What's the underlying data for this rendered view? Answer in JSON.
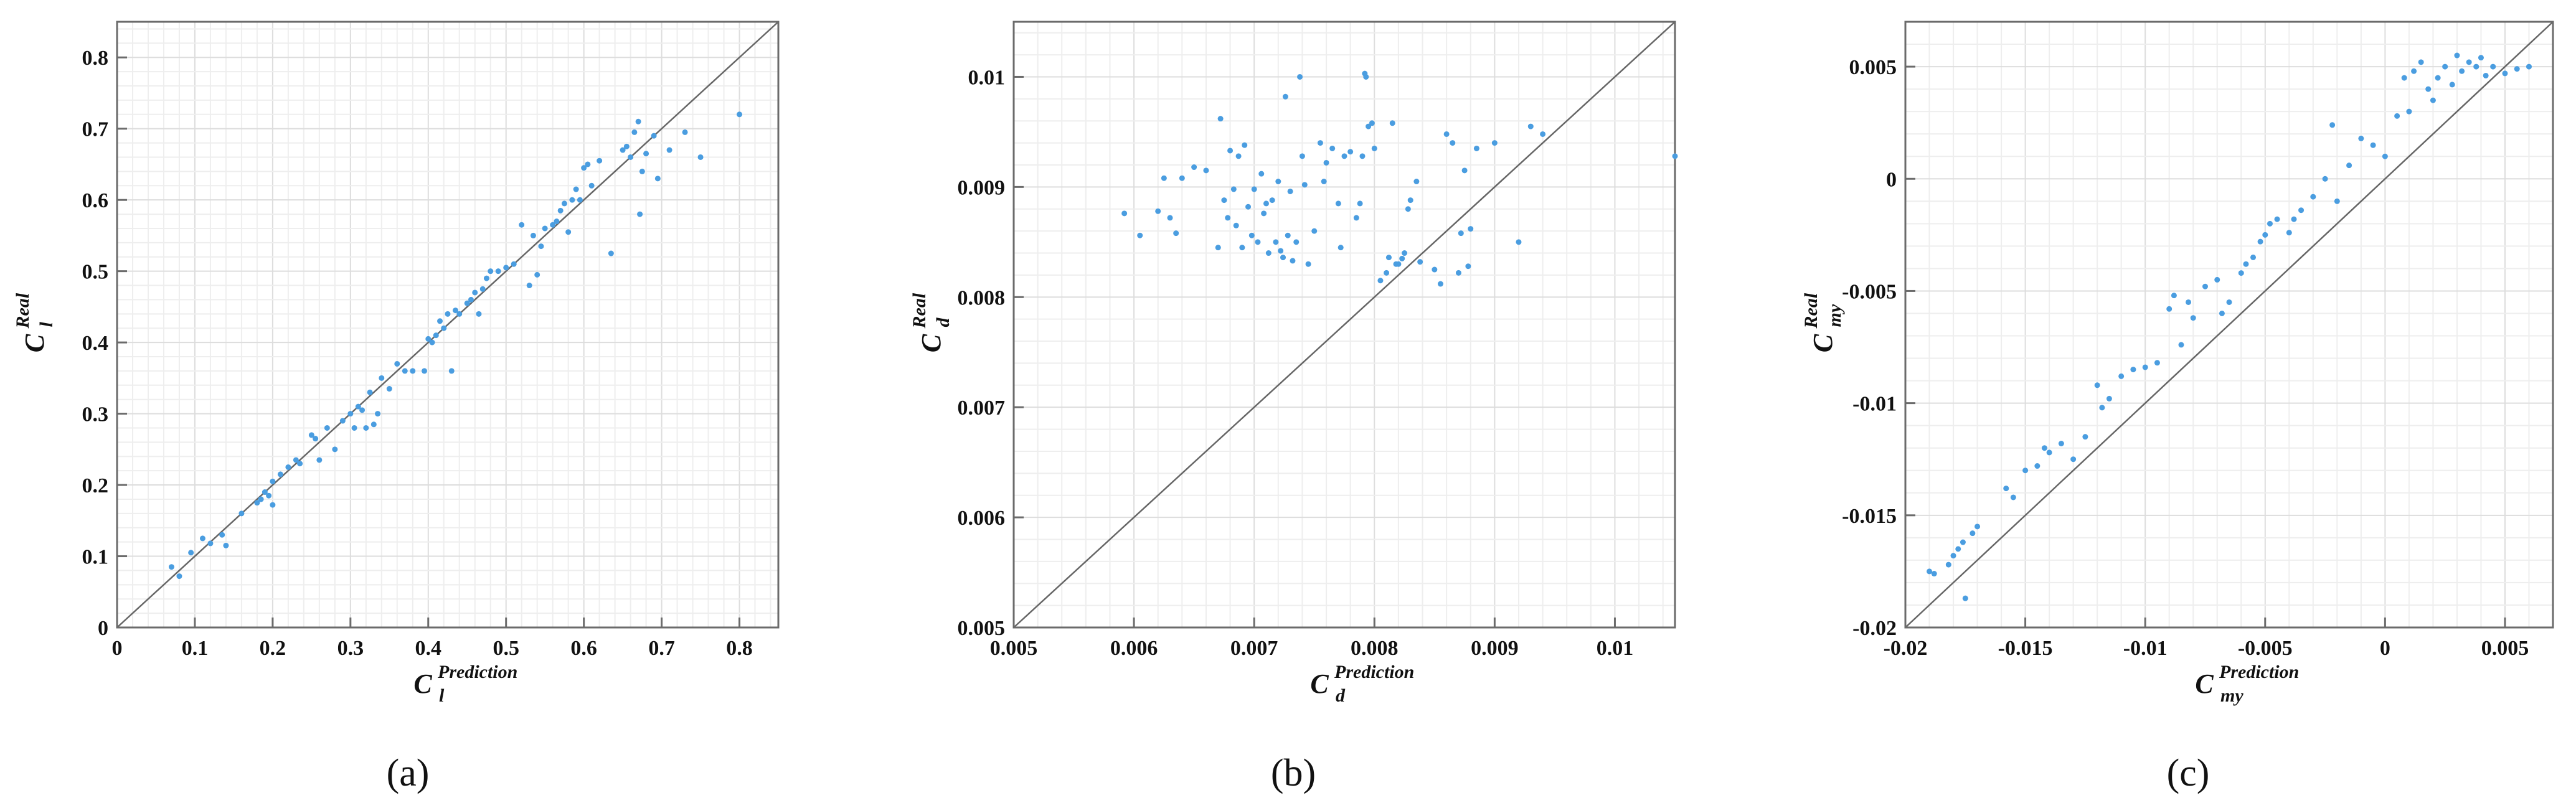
{
  "colors": {
    "points": "#4a9de0",
    "frame": "#6b6b6b",
    "grid_minor": "#eeeeee",
    "grid_major": "#dddddd",
    "diagonal": "#666666"
  },
  "chart_data": [
    {
      "type": "scatter",
      "caption": "(a)",
      "xlabel": {
        "base": "C",
        "sub": "l",
        "sup": "Prediction"
      },
      "ylabel": {
        "base": "C",
        "sub": "l",
        "sup": "Real"
      },
      "xlim": [
        0,
        0.85
      ],
      "ylim": [
        0,
        0.85
      ],
      "xticks": [
        {
          "v": 0,
          "label": "0"
        },
        {
          "v": 0.1,
          "label": "0.1"
        },
        {
          "v": 0.2,
          "label": "0.2"
        },
        {
          "v": 0.3,
          "label": "0.3"
        },
        {
          "v": 0.4,
          "label": "0.4"
        },
        {
          "v": 0.5,
          "label": "0.5"
        },
        {
          "v": 0.6,
          "label": "0.6"
        },
        {
          "v": 0.7,
          "label": "0.7"
        },
        {
          "v": 0.8,
          "label": "0.8"
        }
      ],
      "yticks": [
        {
          "v": 0,
          "label": "0"
        },
        {
          "v": 0.1,
          "label": "0.1"
        },
        {
          "v": 0.2,
          "label": "0.2"
        },
        {
          "v": 0.3,
          "label": "0.3"
        },
        {
          "v": 0.4,
          "label": "0.4"
        },
        {
          "v": 0.5,
          "label": "0.5"
        },
        {
          "v": 0.6,
          "label": "0.6"
        },
        {
          "v": 0.7,
          "label": "0.7"
        },
        {
          "v": 0.8,
          "label": "0.8"
        }
      ],
      "grid": true,
      "diagonal": true,
      "points": [
        [
          0.07,
          0.085
        ],
        [
          0.08,
          0.072
        ],
        [
          0.095,
          0.105
        ],
        [
          0.11,
          0.125
        ],
        [
          0.12,
          0.118
        ],
        [
          0.135,
          0.13
        ],
        [
          0.14,
          0.115
        ],
        [
          0.16,
          0.16
        ],
        [
          0.18,
          0.175
        ],
        [
          0.185,
          0.18
        ],
        [
          0.19,
          0.19
        ],
        [
          0.195,
          0.185
        ],
        [
          0.2,
          0.172
        ],
        [
          0.2,
          0.205
        ],
        [
          0.21,
          0.215
        ],
        [
          0.22,
          0.225
        ],
        [
          0.23,
          0.235
        ],
        [
          0.235,
          0.23
        ],
        [
          0.25,
          0.27
        ],
        [
          0.255,
          0.265
        ],
        [
          0.26,
          0.235
        ],
        [
          0.27,
          0.28
        ],
        [
          0.28,
          0.25
        ],
        [
          0.29,
          0.29
        ],
        [
          0.3,
          0.3
        ],
        [
          0.305,
          0.28
        ],
        [
          0.31,
          0.31
        ],
        [
          0.315,
          0.305
        ],
        [
          0.32,
          0.28
        ],
        [
          0.325,
          0.33
        ],
        [
          0.33,
          0.285
        ],
        [
          0.335,
          0.3
        ],
        [
          0.34,
          0.35
        ],
        [
          0.35,
          0.335
        ],
        [
          0.36,
          0.37
        ],
        [
          0.37,
          0.36
        ],
        [
          0.38,
          0.36
        ],
        [
          0.395,
          0.36
        ],
        [
          0.4,
          0.405
        ],
        [
          0.405,
          0.4
        ],
        [
          0.41,
          0.41
        ],
        [
          0.415,
          0.43
        ],
        [
          0.42,
          0.42
        ],
        [
          0.425,
          0.44
        ],
        [
          0.43,
          0.36
        ],
        [
          0.435,
          0.445
        ],
        [
          0.44,
          0.44
        ],
        [
          0.45,
          0.455
        ],
        [
          0.455,
          0.46
        ],
        [
          0.46,
          0.47
        ],
        [
          0.465,
          0.44
        ],
        [
          0.47,
          0.475
        ],
        [
          0.475,
          0.49
        ],
        [
          0.48,
          0.5
        ],
        [
          0.49,
          0.5
        ],
        [
          0.5,
          0.505
        ],
        [
          0.51,
          0.51
        ],
        [
          0.52,
          0.565
        ],
        [
          0.53,
          0.48
        ],
        [
          0.535,
          0.55
        ],
        [
          0.54,
          0.495
        ],
        [
          0.545,
          0.535
        ],
        [
          0.55,
          0.56
        ],
        [
          0.56,
          0.565
        ],
        [
          0.565,
          0.57
        ],
        [
          0.57,
          0.585
        ],
        [
          0.575,
          0.595
        ],
        [
          0.58,
          0.555
        ],
        [
          0.585,
          0.6
        ],
        [
          0.59,
          0.615
        ],
        [
          0.595,
          0.6
        ],
        [
          0.6,
          0.645
        ],
        [
          0.605,
          0.65
        ],
        [
          0.61,
          0.62
        ],
        [
          0.62,
          0.655
        ],
        [
          0.635,
          0.525
        ],
        [
          0.65,
          0.67
        ],
        [
          0.655,
          0.675
        ],
        [
          0.66,
          0.66
        ],
        [
          0.665,
          0.695
        ],
        [
          0.67,
          0.71
        ],
        [
          0.672,
          0.58
        ],
        [
          0.675,
          0.64
        ],
        [
          0.68,
          0.665
        ],
        [
          0.69,
          0.69
        ],
        [
          0.695,
          0.63
        ],
        [
          0.71,
          0.67
        ],
        [
          0.73,
          0.695
        ],
        [
          0.75,
          0.66
        ],
        [
          0.8,
          0.72
        ]
      ]
    },
    {
      "type": "scatter",
      "caption": "(b)",
      "xlabel": {
        "base": "C",
        "sub": "d",
        "sup": "Prediction"
      },
      "ylabel": {
        "base": "C",
        "sub": "d",
        "sup": "Real"
      },
      "xlim": [
        0.005,
        0.0105
      ],
      "ylim": [
        0.005,
        0.0105
      ],
      "xticks": [
        {
          "v": 0.005,
          "label": "0.005"
        },
        {
          "v": 0.006,
          "label": "0.006"
        },
        {
          "v": 0.007,
          "label": "0.007"
        },
        {
          "v": 0.008,
          "label": "0.008"
        },
        {
          "v": 0.009,
          "label": "0.009"
        },
        {
          "v": 0.01,
          "label": "0.01"
        }
      ],
      "yticks": [
        {
          "v": 0.005,
          "label": "0.005"
        },
        {
          "v": 0.006,
          "label": "0.006"
        },
        {
          "v": 0.007,
          "label": "0.007"
        },
        {
          "v": 0.008,
          "label": "0.008"
        },
        {
          "v": 0.009,
          "label": "0.009"
        },
        {
          "v": 0.01,
          "label": "0.01"
        }
      ],
      "grid": true,
      "diagonal": true,
      "points": [
        [
          0.00592,
          0.00876
        ],
        [
          0.00605,
          0.00856
        ],
        [
          0.0062,
          0.00878
        ],
        [
          0.00625,
          0.00908
        ],
        [
          0.0063,
          0.00872
        ],
        [
          0.00635,
          0.00858
        ],
        [
          0.0064,
          0.00908
        ],
        [
          0.0065,
          0.00918
        ],
        [
          0.0066,
          0.00915
        ],
        [
          0.0067,
          0.00845
        ],
        [
          0.00672,
          0.00962
        ],
        [
          0.00675,
          0.00888
        ],
        [
          0.00678,
          0.00872
        ],
        [
          0.0068,
          0.00933
        ],
        [
          0.00683,
          0.00898
        ],
        [
          0.00685,
          0.00865
        ],
        [
          0.00687,
          0.00928
        ],
        [
          0.0069,
          0.00845
        ],
        [
          0.00692,
          0.00938
        ],
        [
          0.00695,
          0.00882
        ],
        [
          0.00698,
          0.00856
        ],
        [
          0.007,
          0.00898
        ],
        [
          0.00703,
          0.0085
        ],
        [
          0.00706,
          0.00912
        ],
        [
          0.00708,
          0.00876
        ],
        [
          0.0071,
          0.00885
        ],
        [
          0.00712,
          0.0084
        ],
        [
          0.00715,
          0.00888
        ],
        [
          0.00718,
          0.0085
        ],
        [
          0.0072,
          0.00905
        ],
        [
          0.00722,
          0.00842
        ],
        [
          0.00724,
          0.00836
        ],
        [
          0.00726,
          0.00982
        ],
        [
          0.00728,
          0.00856
        ],
        [
          0.0073,
          0.00896
        ],
        [
          0.00732,
          0.00833
        ],
        [
          0.00735,
          0.0085
        ],
        [
          0.00738,
          0.01
        ],
        [
          0.0074,
          0.00928
        ],
        [
          0.00742,
          0.00902
        ],
        [
          0.00745,
          0.0083
        ],
        [
          0.0075,
          0.0086
        ],
        [
          0.00755,
          0.0094
        ],
        [
          0.00758,
          0.00905
        ],
        [
          0.0076,
          0.00922
        ],
        [
          0.00765,
          0.00935
        ],
        [
          0.0077,
          0.00885
        ],
        [
          0.00772,
          0.00845
        ],
        [
          0.00775,
          0.00928
        ],
        [
          0.0078,
          0.00932
        ],
        [
          0.00785,
          0.00872
        ],
        [
          0.00788,
          0.00885
        ],
        [
          0.0079,
          0.00928
        ],
        [
          0.00792,
          0.01003
        ],
        [
          0.00793,
          0.01
        ],
        [
          0.00795,
          0.00955
        ],
        [
          0.00798,
          0.00958
        ],
        [
          0.008,
          0.00935
        ],
        [
          0.00805,
          0.00815
        ],
        [
          0.0081,
          0.00822
        ],
        [
          0.00812,
          0.00836
        ],
        [
          0.00815,
          0.00958
        ],
        [
          0.00818,
          0.0083
        ],
        [
          0.0082,
          0.0083
        ],
        [
          0.00823,
          0.00835
        ],
        [
          0.00825,
          0.0084
        ],
        [
          0.00828,
          0.0088
        ],
        [
          0.0083,
          0.00888
        ],
        [
          0.00835,
          0.00905
        ],
        [
          0.00838,
          0.00832
        ],
        [
          0.0085,
          0.00825
        ],
        [
          0.00855,
          0.00812
        ],
        [
          0.0086,
          0.00948
        ],
        [
          0.00865,
          0.0094
        ],
        [
          0.0087,
          0.00822
        ],
        [
          0.00872,
          0.00858
        ],
        [
          0.00875,
          0.00915
        ],
        [
          0.00878,
          0.00828
        ],
        [
          0.0088,
          0.00862
        ],
        [
          0.00885,
          0.00935
        ],
        [
          0.009,
          0.0094
        ],
        [
          0.0092,
          0.0085
        ],
        [
          0.0093,
          0.00955
        ],
        [
          0.0094,
          0.00948
        ],
        [
          0.0105,
          0.00928
        ]
      ]
    },
    {
      "type": "scatter",
      "caption": "(c)",
      "xlabel": {
        "base": "C",
        "sub": "my",
        "sup": "Prediction"
      },
      "ylabel": {
        "base": "C",
        "sub": "my",
        "sup": "Real"
      },
      "xlim": [
        -0.02,
        0.007
      ],
      "ylim": [
        -0.02,
        0.007
      ],
      "xticks": [
        {
          "v": -0.02,
          "label": "-0.02"
        },
        {
          "v": -0.015,
          "label": "-0.015"
        },
        {
          "v": -0.01,
          "label": "-0.01"
        },
        {
          "v": -0.005,
          "label": "-0.005"
        },
        {
          "v": 0,
          "label": "0"
        },
        {
          "v": 0.005,
          "label": "0.005"
        }
      ],
      "yticks": [
        {
          "v": -0.02,
          "label": "-0.02"
        },
        {
          "v": -0.015,
          "label": "-0.015"
        },
        {
          "v": -0.01,
          "label": "-0.01"
        },
        {
          "v": -0.005,
          "label": "-0.005"
        },
        {
          "v": 0,
          "label": "0"
        },
        {
          "v": 0.005,
          "label": "0.005"
        }
      ],
      "grid": true,
      "diagonal": true,
      "points": [
        [
          -0.019,
          -0.0175
        ],
        [
          -0.0188,
          -0.0176
        ],
        [
          -0.0182,
          -0.0172
        ],
        [
          -0.018,
          -0.0168
        ],
        [
          -0.0178,
          -0.0165
        ],
        [
          -0.0176,
          -0.0162
        ],
        [
          -0.0175,
          -0.0187
        ],
        [
          -0.0172,
          -0.0158
        ],
        [
          -0.017,
          -0.0155
        ],
        [
          -0.0158,
          -0.0138
        ],
        [
          -0.0155,
          -0.0142
        ],
        [
          -0.015,
          -0.013
        ],
        [
          -0.0145,
          -0.0128
        ],
        [
          -0.0142,
          -0.012
        ],
        [
          -0.014,
          -0.0122
        ],
        [
          -0.0135,
          -0.0118
        ],
        [
          -0.013,
          -0.0125
        ],
        [
          -0.0125,
          -0.0115
        ],
        [
          -0.012,
          -0.0092
        ],
        [
          -0.0118,
          -0.0102
        ],
        [
          -0.0115,
          -0.0098
        ],
        [
          -0.011,
          -0.0088
        ],
        [
          -0.0105,
          -0.0085
        ],
        [
          -0.01,
          -0.0084
        ],
        [
          -0.0095,
          -0.0082
        ],
        [
          -0.009,
          -0.0058
        ],
        [
          -0.0088,
          -0.0052
        ],
        [
          -0.0085,
          -0.0074
        ],
        [
          -0.0082,
          -0.0055
        ],
        [
          -0.008,
          -0.0062
        ],
        [
          -0.0075,
          -0.0048
        ],
        [
          -0.007,
          -0.0045
        ],
        [
          -0.0068,
          -0.006
        ],
        [
          -0.0065,
          -0.0055
        ],
        [
          -0.006,
          -0.0042
        ],
        [
          -0.0058,
          -0.0038
        ],
        [
          -0.0055,
          -0.0035
        ],
        [
          -0.0052,
          -0.0028
        ],
        [
          -0.005,
          -0.0025
        ],
        [
          -0.0048,
          -0.002
        ],
        [
          -0.0045,
          -0.0018
        ],
        [
          -0.004,
          -0.0024
        ],
        [
          -0.0038,
          -0.0018
        ],
        [
          -0.0035,
          -0.0014
        ],
        [
          -0.003,
          -0.0008
        ],
        [
          -0.0025,
          0.0
        ],
        [
          -0.0022,
          0.0024
        ],
        [
          -0.002,
          -0.001
        ],
        [
          -0.0015,
          0.0006
        ],
        [
          -0.001,
          0.0018
        ],
        [
          -0.0005,
          0.0015
        ],
        [
          0.0,
          0.001
        ],
        [
          0.0005,
          0.0028
        ],
        [
          0.0008,
          0.0045
        ],
        [
          0.001,
          0.003
        ],
        [
          0.0012,
          0.0048
        ],
        [
          0.0015,
          0.0052
        ],
        [
          0.0018,
          0.004
        ],
        [
          0.002,
          0.0035
        ],
        [
          0.0022,
          0.0045
        ],
        [
          0.0025,
          0.005
        ],
        [
          0.0028,
          0.0042
        ],
        [
          0.003,
          0.0055
        ],
        [
          0.0032,
          0.0048
        ],
        [
          0.0035,
          0.0052
        ],
        [
          0.0038,
          0.005
        ],
        [
          0.004,
          0.0054
        ],
        [
          0.0042,
          0.0046
        ],
        [
          0.0045,
          0.005
        ],
        [
          0.005,
          0.0047
        ],
        [
          0.0055,
          0.0049
        ],
        [
          0.006,
          0.005
        ]
      ]
    }
  ]
}
